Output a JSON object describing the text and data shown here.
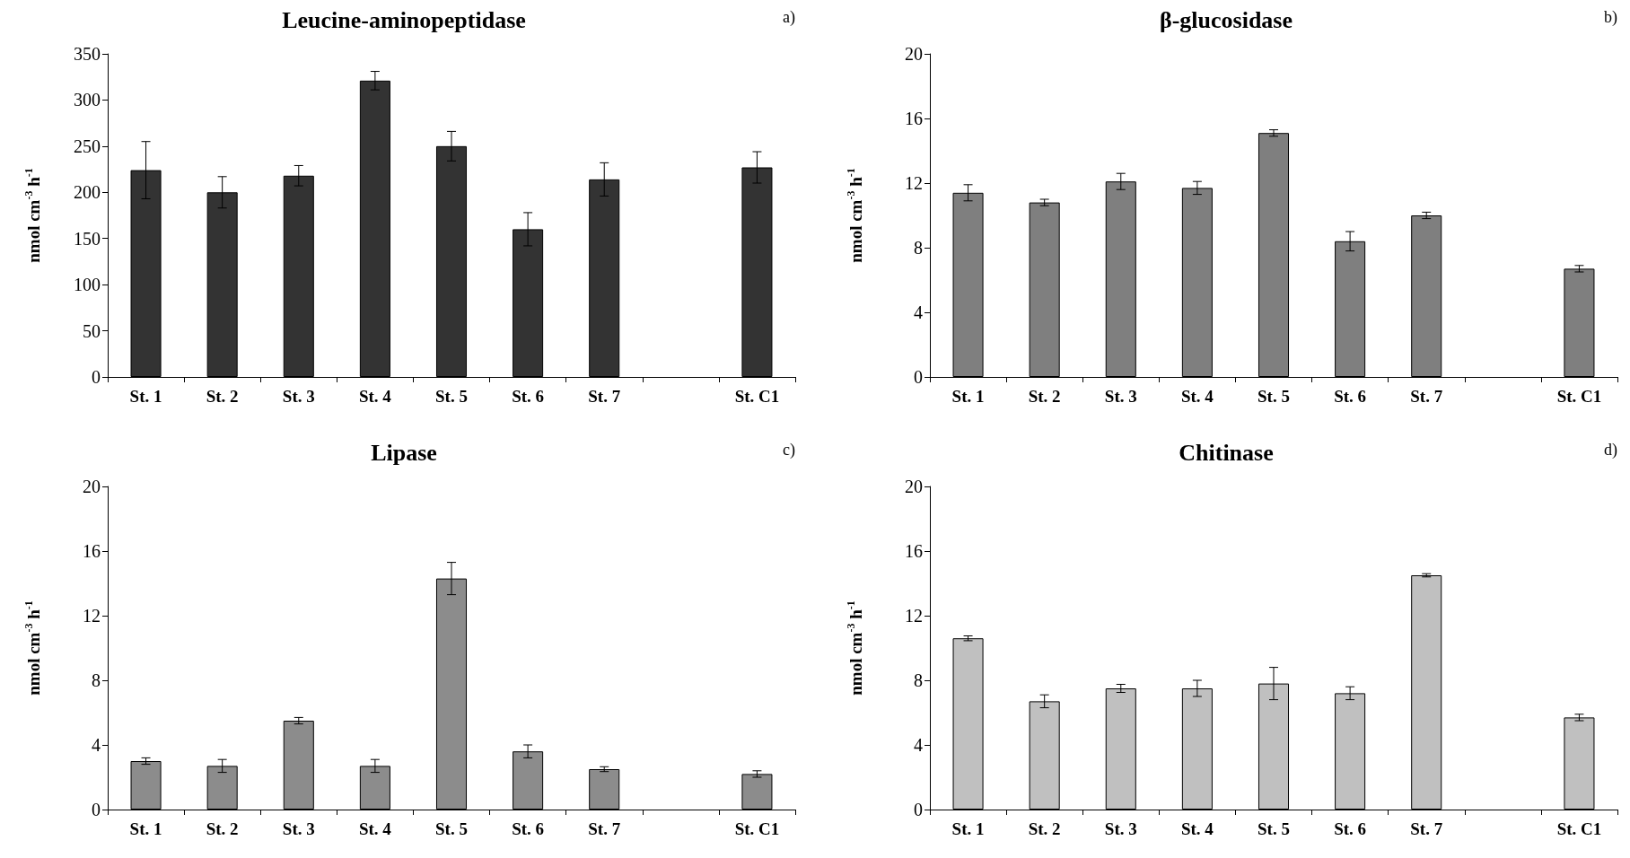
{
  "chart_data": [
    {
      "type": "bar",
      "title": "Leucine-aminopeptidase",
      "annotations": [
        "a)"
      ],
      "ylabel": "nmol cm$^{-3}$ h$^{-1}$",
      "categories": [
        "St. 1",
        "St. 2",
        "St. 3",
        "St. 4",
        "St. 5",
        "St. 6",
        "St. 7",
        null,
        "St. C1"
      ],
      "values": [
        224,
        200,
        218,
        321,
        250,
        160,
        214,
        null,
        227
      ],
      "errors": [
        31,
        17,
        11,
        10,
        16,
        18,
        18,
        null,
        17
      ],
      "color": "#333333",
      "ylim": [
        0,
        350
      ],
      "yticks": [
        0,
        50,
        100,
        150,
        200,
        250,
        300,
        350
      ]
    },
    {
      "type": "bar",
      "title": "β-glucosidase",
      "annotations": [
        "b)"
      ],
      "ylabel": "nmol cm$^{-3}$ h$^{-1}$",
      "categories": [
        "St. 1",
        "St. 2",
        "St. 3",
        "St. 4",
        "St. 5",
        "St. 6",
        "St. 7",
        null,
        "St. C1"
      ],
      "values": [
        11.4,
        10.8,
        12.1,
        11.7,
        15.1,
        8.4,
        10.0,
        null,
        6.7
      ],
      "errors": [
        0.5,
        0.2,
        0.5,
        0.4,
        0.2,
        0.6,
        0.2,
        null,
        0.2
      ],
      "color": "#7f7f7f",
      "ylim": [
        0,
        20
      ],
      "yticks": [
        0,
        4,
        8,
        12,
        16,
        20
      ]
    },
    {
      "type": "bar",
      "title": "Lipase",
      "annotations": [
        "c)"
      ],
      "ylabel": "nmol cm$^{-3}$ h$^{-1}$",
      "categories": [
        "St. 1",
        "St. 2",
        "St. 3",
        "St. 4",
        "St. 5",
        "St. 6",
        "St. 7",
        null,
        "St. C1"
      ],
      "values": [
        3.0,
        2.7,
        5.5,
        2.7,
        14.3,
        3.6,
        2.5,
        null,
        2.2
      ],
      "errors": [
        0.2,
        0.4,
        0.2,
        0.4,
        1.0,
        0.4,
        0.15,
        null,
        0.2
      ],
      "color": "#8c8c8c",
      "ylim": [
        0,
        20
      ],
      "yticks": [
        0,
        4,
        8,
        12,
        16,
        20
      ]
    },
    {
      "type": "bar",
      "title": "Chitinase",
      "annotations": [
        "d)"
      ],
      "ylabel": "nmol cm$^{-3}$ h$^{-1}$",
      "categories": [
        "St. 1",
        "St. 2",
        "St. 3",
        "St. 4",
        "St. 5",
        "St. 6",
        "St. 7",
        null,
        "St. C1"
      ],
      "values": [
        10.6,
        6.7,
        7.5,
        7.5,
        7.8,
        7.2,
        14.5,
        null,
        5.7
      ],
      "errors": [
        0.15,
        0.4,
        0.25,
        0.5,
        1.0,
        0.4,
        0.1,
        null,
        0.2
      ],
      "color": "#c0c0c0",
      "ylim": [
        0,
        20
      ],
      "yticks": [
        0,
        4,
        8,
        12,
        16,
        20
      ]
    }
  ]
}
